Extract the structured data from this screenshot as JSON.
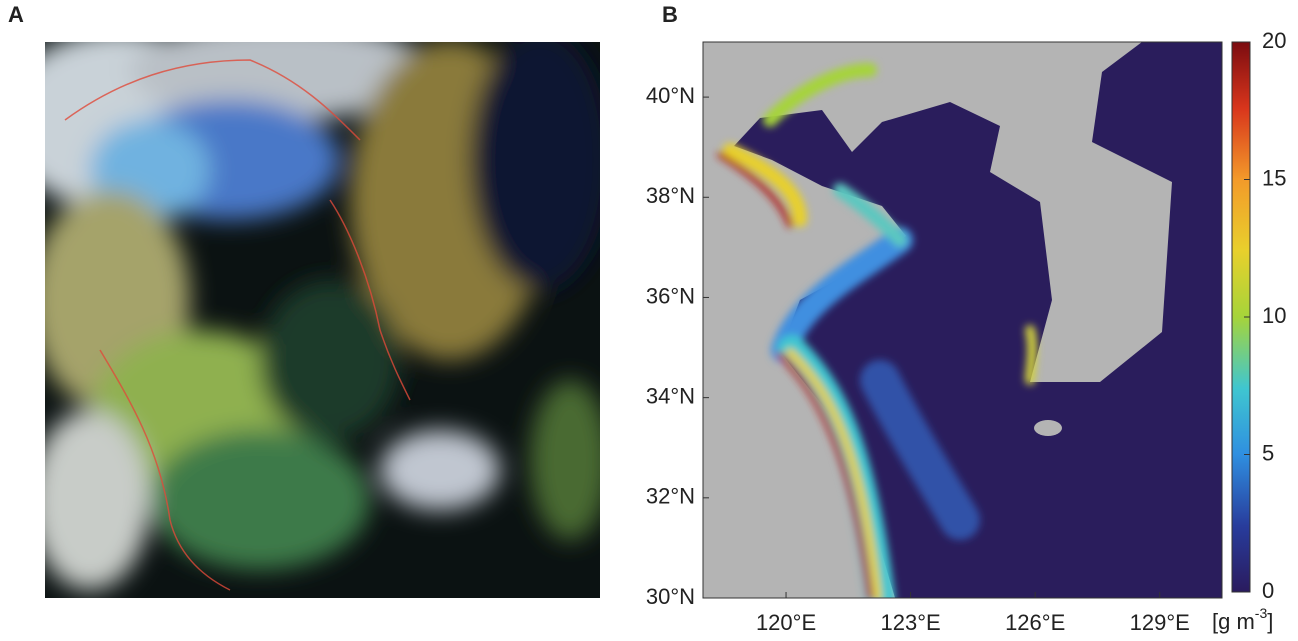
{
  "panels": [
    {
      "label": "A"
    },
    {
      "label": "B",
      "xlim": [
        118,
        130.5
      ],
      "ylim": [
        30,
        41.1
      ],
      "xticks": [
        {
          "value": 120,
          "label": "120°E"
        },
        {
          "value": 123,
          "label": "123°E"
        },
        {
          "value": 126,
          "label": "126°E"
        },
        {
          "value": 129,
          "label": "129°E"
        }
      ],
      "yticks": [
        {
          "value": 30,
          "label": "30°N"
        },
        {
          "value": 32,
          "label": "32°N"
        },
        {
          "value": 34,
          "label": "34°N"
        },
        {
          "value": 36,
          "label": "36°N"
        },
        {
          "value": 38,
          "label": "38°N"
        },
        {
          "value": 40,
          "label": "40°N"
        }
      ],
      "colorbar": {
        "lim": [
          0,
          20
        ],
        "ticks": [
          0,
          5,
          10,
          15,
          20
        ],
        "unit_base": "[g m",
        "unit_exponent": "-3",
        "unit_close": "]"
      }
    }
  ]
}
